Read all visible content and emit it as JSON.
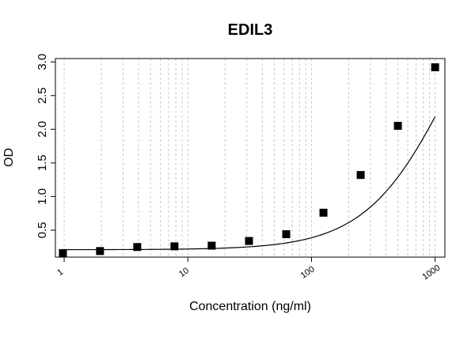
{
  "chart_data": {
    "type": "scatter",
    "title": "EDIL3",
    "xlabel": "Concentration (ng/ml)",
    "ylabel": "OD",
    "x_scale": "log",
    "xlim": [
      0.85,
      1200
    ],
    "ylim": [
      0.1,
      3.05
    ],
    "x_ticks": [
      1,
      10,
      100,
      1000
    ],
    "x_tick_labels": [
      "1",
      "10",
      "100",
      "1000"
    ],
    "y_ticks": [
      0.5,
      1.0,
      1.5,
      2.0,
      2.5,
      3.0
    ],
    "y_tick_labels": [
      "0.5",
      "1.0",
      "1.5",
      "2.0",
      "2.5",
      "3.0"
    ],
    "grid": {
      "x_minor_log": true,
      "y": false
    },
    "series": [
      {
        "marker": "square",
        "color": "#000000",
        "points": [
          {
            "x": 0.977,
            "y": 0.16
          },
          {
            "x": 1.95,
            "y": 0.19
          },
          {
            "x": 3.9,
            "y": 0.25
          },
          {
            "x": 7.8,
            "y": 0.26
          },
          {
            "x": 15.6,
            "y": 0.27
          },
          {
            "x": 31.25,
            "y": 0.34
          },
          {
            "x": 62.5,
            "y": 0.44
          },
          {
            "x": 125,
            "y": 0.76
          },
          {
            "x": 250,
            "y": 1.32
          },
          {
            "x": 500,
            "y": 2.05
          },
          {
            "x": 1000,
            "y": 2.92
          }
        ]
      }
    ],
    "fit_curve": {
      "model": "4PL",
      "A": 0.21,
      "D": 5.2,
      "C": 1400,
      "B": 1.25
    }
  }
}
